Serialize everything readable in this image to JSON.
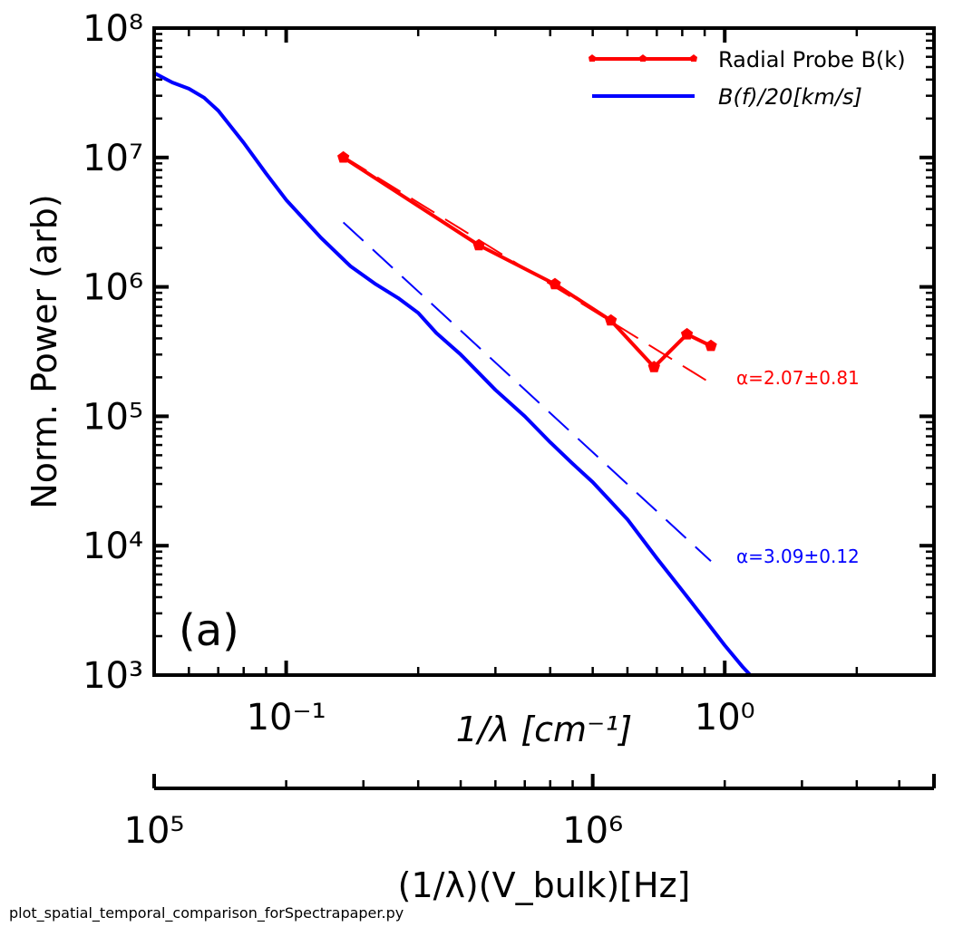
{
  "chart_data": {
    "type": "line",
    "panel_label": "(a)",
    "xlabel_top": "1/λ [cm⁻¹]",
    "xlabel_bottom": "(1/λ)(V_bulk)[Hz]",
    "ylabel": "Norm. Power (arb)",
    "x_scale": "log",
    "y_scale": "log",
    "xlim": [
      0.05,
      3.0
    ],
    "ylim": [
      1000,
      100000000
    ],
    "xlim_bottom": [
      100000,
      6000000
    ],
    "x_tick_labels": [
      "10⁻¹",
      "10⁰"
    ],
    "x_ticks": [
      0.1,
      1.0
    ],
    "x_bottom_tick_labels": [
      "10⁵",
      "10⁶"
    ],
    "x_bottom_ticks": [
      100000,
      1000000
    ],
    "y_tick_labels": [
      "10³",
      "10⁴",
      "10⁵",
      "10⁶",
      "10⁷",
      "10⁸"
    ],
    "y_ticks": [
      1000,
      10000,
      100000,
      1000000,
      10000000,
      100000000
    ],
    "legend_position": "top-right",
    "series": [
      {
        "name": "Radial Probe B(k)",
        "color": "#ff0000",
        "marker": "pentagon",
        "x": [
          0.135,
          0.275,
          0.41,
          0.55,
          0.69,
          0.82,
          0.93
        ],
        "y": [
          10000000,
          2100000,
          1050000,
          550000,
          240000,
          430000,
          350000
        ]
      },
      {
        "name": "B(f)/20[km/s]",
        "color": "#0000ff",
        "marker": "none",
        "x": [
          0.05,
          0.055,
          0.06,
          0.065,
          0.07,
          0.08,
          0.09,
          0.1,
          0.12,
          0.14,
          0.16,
          0.18,
          0.2,
          0.22,
          0.25,
          0.3,
          0.35,
          0.4,
          0.45,
          0.5,
          0.6,
          0.7,
          0.8,
          0.9,
          1.0,
          1.1,
          1.16
        ],
        "y": [
          45000000,
          38000000,
          34000000,
          29000000,
          23000000,
          13000000,
          7500000,
          4700000,
          2400000,
          1450000,
          1050000,
          820000,
          630000,
          440000,
          300000,
          160000,
          100000,
          63000,
          43000,
          31000,
          16000,
          8000,
          4500,
          2700,
          1700,
          1150,
          950
        ]
      }
    ],
    "fits": [
      {
        "name": "red fit",
        "color": "#ff0000",
        "x": [
          0.135,
          0.93
        ],
        "y": [
          10200000,
          180000
        ],
        "label": "α=2.07±0.81"
      },
      {
        "name": "blue fit",
        "color": "#0000ff",
        "x": [
          0.135,
          0.93
        ],
        "y": [
          3150000,
          7600
        ],
        "label": "α=3.09±0.12"
      }
    ]
  },
  "footer_text": "plot_spatial_temporal_comparison_forSpectrapaper.py"
}
